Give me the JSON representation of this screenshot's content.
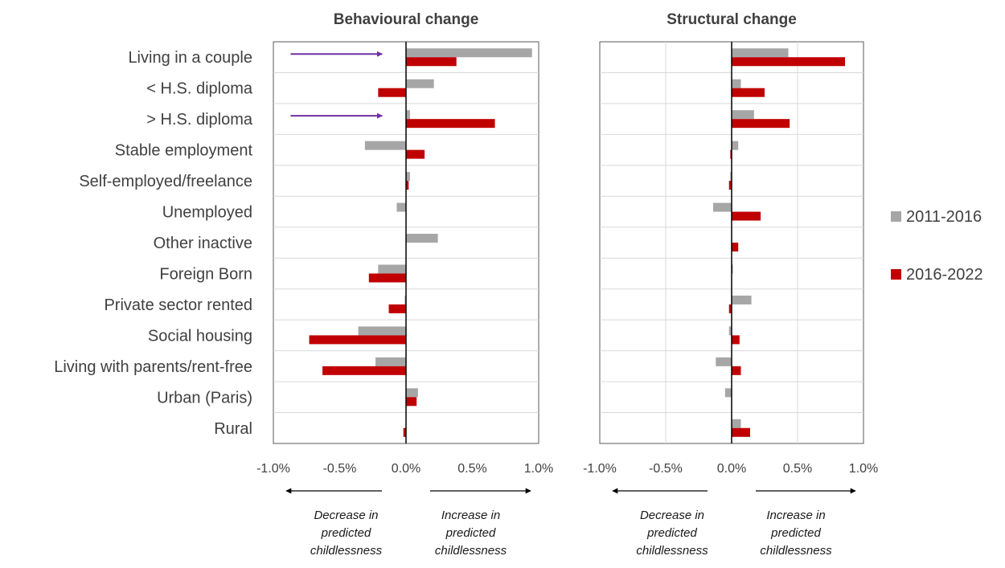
{
  "chart_data": [
    {
      "type": "bar",
      "orientation": "horizontal",
      "title": "Behavioural change",
      "categories": [
        "Living in a couple",
        "< H.S. diploma",
        "> H.S. diploma",
        "Stable employment",
        "Self-employed/freelance",
        "Unemployed",
        "Other inactive",
        "Foreign Born",
        "Private sector rented",
        "Social housing",
        "Living with parents/rent-free",
        "Urban (Paris)",
        "Rural"
      ],
      "series": [
        {
          "name": "2011-2016",
          "color": "#a6a6a6",
          "values": [
            0.95,
            0.21,
            0.03,
            -0.31,
            0.03,
            -0.07,
            0.24,
            -0.21,
            -0.01,
            -0.36,
            -0.23,
            0.09,
            0.0
          ]
        },
        {
          "name": "2016-2022",
          "color": "#c00000",
          "values": [
            0.38,
            -0.21,
            0.67,
            0.14,
            0.02,
            0.0,
            0.0,
            -0.28,
            -0.13,
            -0.73,
            -0.63,
            0.08,
            -0.02
          ]
        }
      ],
      "xlim": [
        -1.0,
        1.0
      ],
      "xticks": [
        "-1.0%",
        "-0.5%",
        "0.0%",
        "0.5%",
        "1.0%"
      ],
      "xticks_values": [
        -1.0,
        -0.5,
        0.0,
        0.5,
        1.0
      ],
      "grid": false,
      "annotations": [
        {
          "type": "arrow",
          "color": "#7030a0",
          "category": "Living in a couple",
          "x_from": -0.87,
          "x_to": -0.18
        },
        {
          "type": "arrow",
          "color": "#7030a0",
          "category": "> H.S. diploma",
          "x_from": -0.87,
          "x_to": -0.18
        }
      ],
      "notes": {
        "left_text": "Decrease in predicted childlessness",
        "right_text": "Increase in predicted childlessness"
      }
    },
    {
      "type": "bar",
      "orientation": "horizontal",
      "title": "Structural change",
      "categories": [
        "Living in a couple",
        "< H.S. diploma",
        "> H.S. diploma",
        "Stable employment",
        "Self-employed/freelance",
        "Unemployed",
        "Other inactive",
        "Foreign Born",
        "Private sector rented",
        "Social housing",
        "Living with parents/rent-free",
        "Urban (Paris)",
        "Rural"
      ],
      "series": [
        {
          "name": "2011-2016",
          "color": "#a6a6a6",
          "values": [
            0.43,
            0.07,
            0.17,
            0.05,
            -0.01,
            -0.14,
            0.0,
            0.01,
            0.15,
            -0.02,
            -0.12,
            -0.05,
            0.07
          ]
        },
        {
          "name": "2016-2022",
          "color": "#c00000",
          "values": [
            0.86,
            0.25,
            0.44,
            -0.01,
            -0.02,
            0.22,
            0.05,
            0.0,
            -0.02,
            0.06,
            0.07,
            0.0,
            0.14
          ]
        }
      ],
      "xlim": [
        -1.0,
        1.0
      ],
      "xticks": [
        "-1.0%",
        "-0.5%",
        "0.0%",
        "0.5%",
        "1.0%"
      ],
      "xticks_values": [
        -1.0,
        -0.5,
        0.0,
        0.5,
        1.0
      ],
      "grid": true,
      "notes": {
        "left_text": "Decrease in predicted childlessness",
        "right_text": "Increase in predicted childlessness"
      }
    }
  ],
  "legend": {
    "placement": "right",
    "items": [
      {
        "label": "2011-2016",
        "color": "#a6a6a6"
      },
      {
        "label": "2016-2022",
        "color": "#c00000"
      }
    ]
  }
}
